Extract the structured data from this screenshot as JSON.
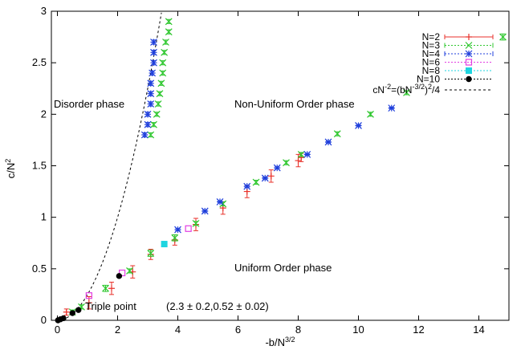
{
  "chart_data": {
    "type": "scatter",
    "title": "",
    "xlabel_base": "-b/N",
    "xlabel_sup": "3/2",
    "ylabel_base": "c/N",
    "ylabel_sup": "2",
    "xlim": [
      -0.2,
      15
    ],
    "ylim": [
      0,
      3
    ],
    "x_ticks": [
      0,
      2,
      4,
      6,
      8,
      10,
      12,
      14
    ],
    "y_ticks": [
      0,
      0.5,
      1,
      1.5,
      2,
      2.5,
      3
    ],
    "y_tick_labels": [
      "0",
      "0.5",
      "1",
      "1.5",
      "2",
      "2.5",
      "3"
    ],
    "grid": false,
    "legend_position": "top-right",
    "annotations": {
      "disorder": "Disorder phase",
      "nonuniform": "Non-Uniform Order phase",
      "uniform": "Uniform Order phase",
      "triple": "Triple point",
      "triple_value": "(2.3 ± 0.2,0.52 ± 0.02)"
    },
    "curve": {
      "name": "cN^-2=(bN^-3/2)^2/4",
      "label_parts": {
        "a": "cN",
        "a_sup": "-2",
        "b": "=(bN",
        "b_sup": "-3/2",
        "c": ")",
        "c_sup": "2",
        "d": "/4"
      },
      "color": "#000000"
    },
    "series": [
      {
        "name": "N=2",
        "color": "#e8322b",
        "marker": "plus",
        "errbar": true,
        "points": [
          [
            0.3,
            0.08,
            0.03
          ],
          [
            1.05,
            0.17,
            0.06
          ],
          [
            1.8,
            0.31,
            0.06
          ],
          [
            2.5,
            0.47,
            0.06
          ],
          [
            3.1,
            0.64,
            0.05
          ],
          [
            3.9,
            0.78,
            0.05
          ],
          [
            4.6,
            0.93,
            0.06
          ],
          [
            5.5,
            1.09,
            0.06
          ],
          [
            6.3,
            1.25,
            0.06
          ],
          [
            7.1,
            1.4,
            0.06
          ],
          [
            8.0,
            1.55,
            0.06
          ],
          [
            8.1,
            1.58,
            0.04
          ]
        ]
      },
      {
        "name": "N=3",
        "color": "#2fc72f",
        "marker": "x",
        "errbar": true,
        "points": [
          [
            0.5,
            0.08,
            0.02
          ],
          [
            0.8,
            0.13,
            0.02
          ],
          [
            1.6,
            0.31,
            0.03
          ],
          [
            2.4,
            0.48,
            0.02
          ],
          [
            3.1,
            0.65,
            0.03
          ],
          [
            3.9,
            0.8,
            0.03
          ],
          [
            4.6,
            0.94,
            0.02
          ],
          [
            5.5,
            1.13,
            0.02
          ],
          [
            6.6,
            1.34,
            0.02
          ],
          [
            7.6,
            1.53,
            0.02
          ],
          [
            8.1,
            1.61,
            0.02
          ],
          [
            9.3,
            1.81,
            0.02
          ],
          [
            10.4,
            2.0,
            0.02
          ],
          [
            11.6,
            2.21,
            0.02
          ],
          [
            14.8,
            2.75,
            0.03
          ],
          [
            3.1,
            1.8,
            0.02
          ],
          [
            3.2,
            1.9,
            0.02
          ],
          [
            3.3,
            2.0,
            0.02
          ],
          [
            3.35,
            2.1,
            0.02
          ],
          [
            3.4,
            2.2,
            0.02
          ],
          [
            3.45,
            2.3,
            0.02
          ],
          [
            3.5,
            2.4,
            0.02
          ],
          [
            3.5,
            2.5,
            0.02
          ],
          [
            3.55,
            2.6,
            0.02
          ],
          [
            3.6,
            2.7,
            0.02
          ],
          [
            3.7,
            2.8,
            0.02
          ],
          [
            3.7,
            2.9,
            0.02
          ]
        ]
      },
      {
        "name": "N=4",
        "color": "#1f3fdc",
        "marker": "star",
        "errbar": true,
        "points": [
          [
            4.0,
            0.88,
            0.01
          ],
          [
            4.9,
            1.06,
            0.01
          ],
          [
            5.4,
            1.15,
            0.01
          ],
          [
            6.3,
            1.3,
            0.01
          ],
          [
            6.9,
            1.38,
            0.01
          ],
          [
            7.3,
            1.48,
            0.01
          ],
          [
            8.3,
            1.61,
            0.01
          ],
          [
            9.0,
            1.73,
            0.01
          ],
          [
            10.0,
            1.89,
            0.01
          ],
          [
            11.1,
            2.06,
            0.01
          ],
          [
            2.9,
            1.8,
            0.02
          ],
          [
            3.0,
            1.9,
            0.02
          ],
          [
            3.0,
            2.0,
            0.02
          ],
          [
            3.1,
            2.1,
            0.02
          ],
          [
            3.1,
            2.2,
            0.02
          ],
          [
            3.1,
            2.3,
            0.02
          ],
          [
            3.15,
            2.4,
            0.02
          ],
          [
            3.2,
            2.5,
            0.02
          ],
          [
            3.2,
            2.6,
            0.02
          ],
          [
            3.2,
            2.7,
            0.02
          ]
        ]
      },
      {
        "name": "N=6",
        "color": "#e23ee2",
        "marker": "square",
        "errbar": false,
        "points": [
          [
            1.05,
            0.24,
            0
          ],
          [
            2.15,
            0.46,
            0
          ],
          [
            4.35,
            0.89,
            0
          ]
        ]
      },
      {
        "name": "N=8",
        "color": "#1ed5e0",
        "marker": "fsquare",
        "errbar": false,
        "points": [
          [
            3.55,
            0.74,
            0
          ]
        ]
      },
      {
        "name": "N=10",
        "color": "#000000",
        "marker": "fcircle",
        "errbar": false,
        "points": [
          [
            0.02,
            0.0,
            0
          ],
          [
            0.1,
            0.01,
            0
          ],
          [
            0.2,
            0.02,
            0
          ],
          [
            0.5,
            0.07,
            0
          ],
          [
            0.7,
            0.1,
            0
          ],
          [
            2.05,
            0.43,
            0
          ]
        ]
      }
    ]
  }
}
